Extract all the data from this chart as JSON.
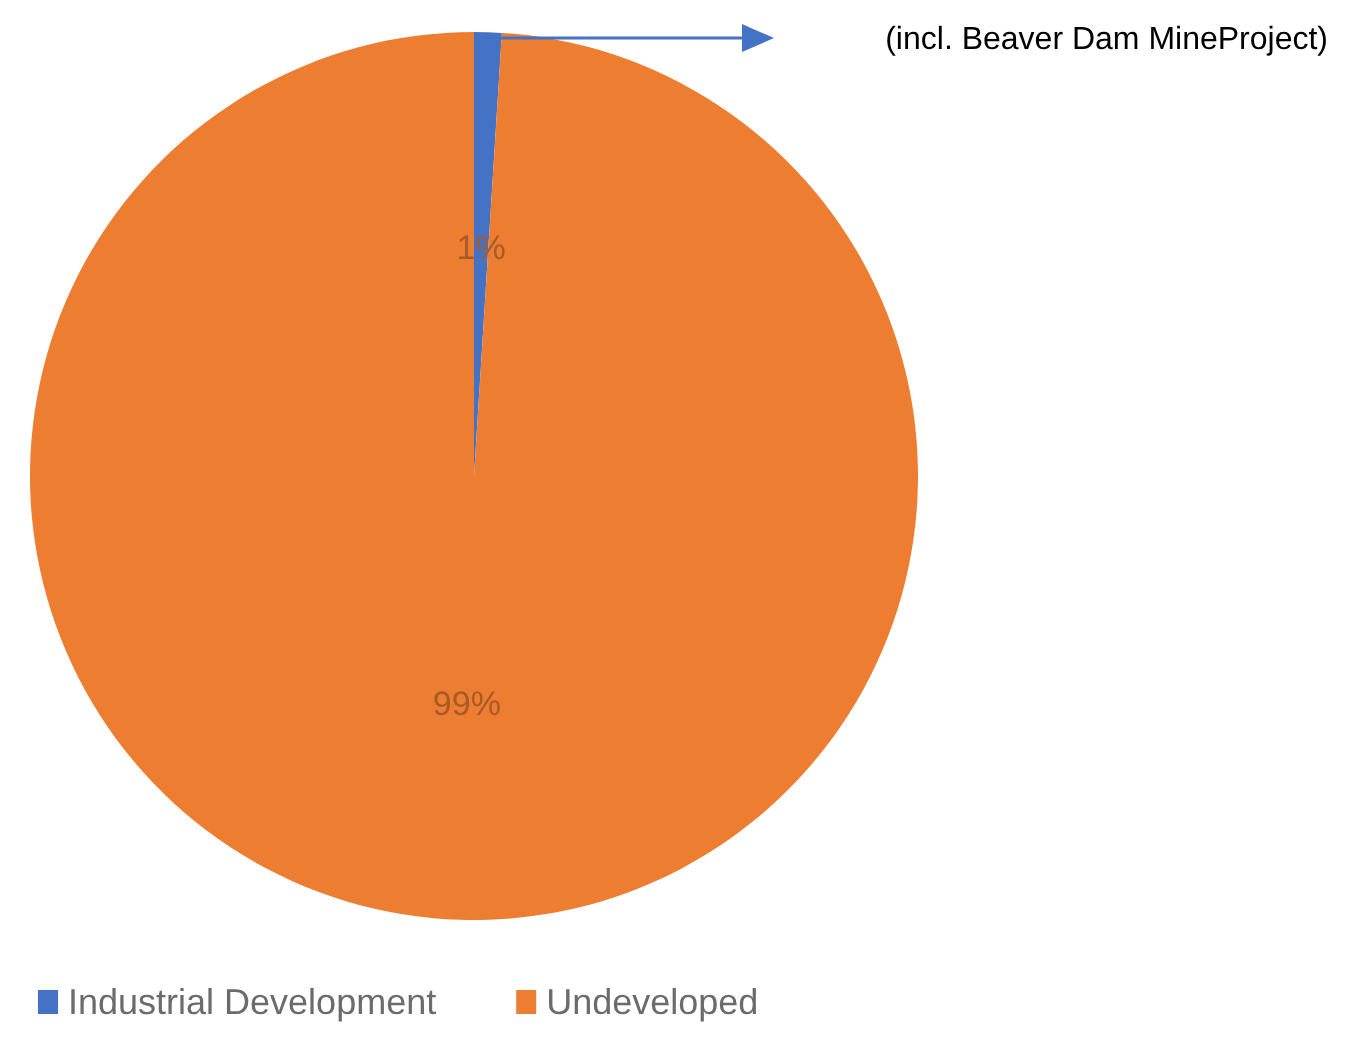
{
  "chart_data": {
    "type": "pie",
    "categories": [
      "Industrial Development",
      "Undeveloped"
    ],
    "values": [
      1,
      99
    ],
    "value_labels": [
      "1%",
      "99%"
    ],
    "colors": [
      "#4472c4",
      "#ed7d31"
    ],
    "legend": "bottom",
    "annotations": [
      "(incl. Beaver Dam MineProject)"
    ]
  }
}
